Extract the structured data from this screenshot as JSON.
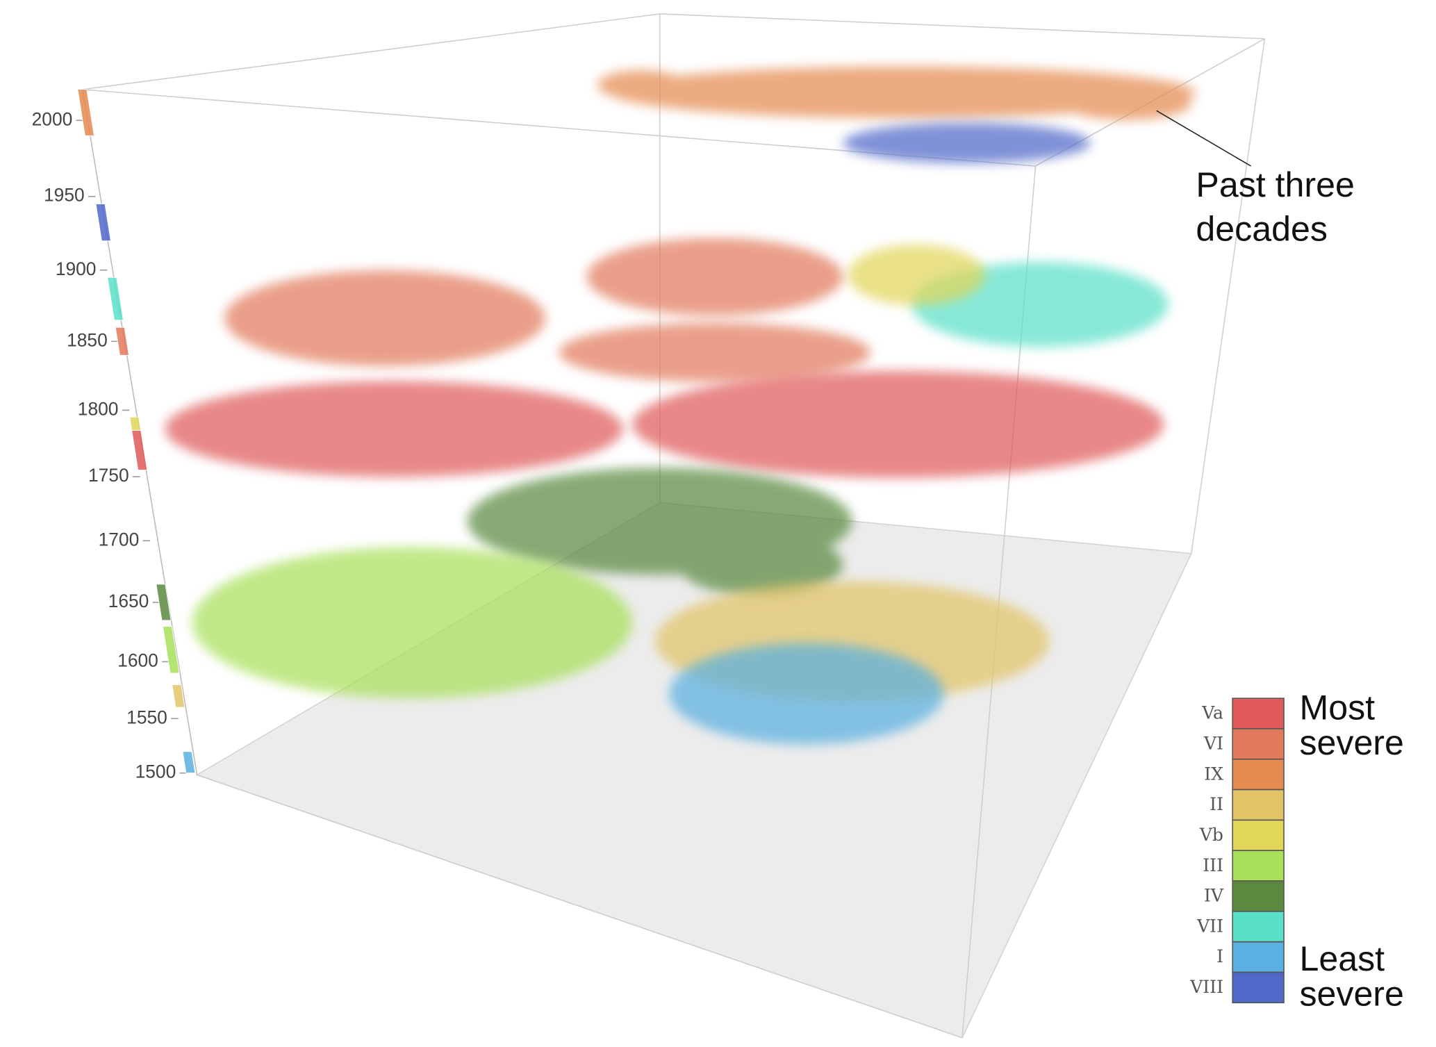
{
  "chart_data": {
    "type": "volume-3d",
    "yticks": [
      1500,
      1550,
      1600,
      1650,
      1700,
      1750,
      1800,
      1850,
      1900,
      1950,
      2000
    ],
    "ylim": [
      1500,
      2000
    ],
    "annotation": [
      "Past three",
      "decades"
    ],
    "legend_high": [
      "Most",
      "severe"
    ],
    "legend_low": [
      "Least",
      "severe"
    ],
    "series": [
      {
        "name": "Va",
        "color": "#e05a5a",
        "period": [
          1755,
          1785
        ]
      },
      {
        "name": "VI",
        "color": "#e27a5c",
        "period": [
          1840,
          1860
        ]
      },
      {
        "name": "IX",
        "color": "#e58a50",
        "period": [
          1990,
          2020
        ]
      },
      {
        "name": "II",
        "color": "#e2c466",
        "period": [
          1560,
          1580
        ]
      },
      {
        "name": "Vb",
        "color": "#e2d65a",
        "period": [
          1785,
          1795
        ]
      },
      {
        "name": "III",
        "color": "#a8e05a",
        "period": [
          1590,
          1630
        ]
      },
      {
        "name": "IV",
        "color": "#5a8a40",
        "period": [
          1635,
          1665
        ]
      },
      {
        "name": "VII",
        "color": "#5ae0c8",
        "period": [
          1865,
          1895
        ]
      },
      {
        "name": "I",
        "color": "#5ab0e0",
        "period": [
          1500,
          1520
        ]
      },
      {
        "name": "VIII",
        "color": "#5068c8",
        "period": [
          1920,
          1945
        ]
      }
    ]
  }
}
